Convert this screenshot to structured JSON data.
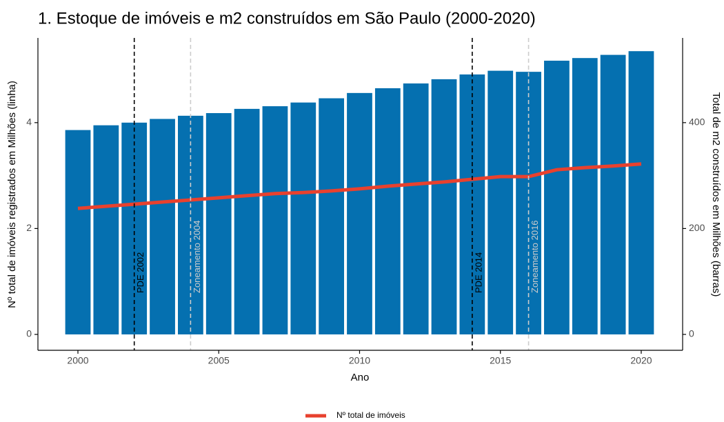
{
  "chart_data": {
    "type": "bar",
    "title": "1. Estoque de imóveis e m2 construídos em São Paulo (2000-2020)",
    "x_label": "Ano",
    "y_label": "Nº total de imóveis registrados em Milhões (linha)",
    "y2_label": "Total de m2 construídos em Milhões (barras)",
    "x": [
      2000,
      2001,
      2002,
      2003,
      2004,
      2005,
      2006,
      2007,
      2008,
      2009,
      2010,
      2011,
      2012,
      2013,
      2014,
      2015,
      2016,
      2017,
      2018,
      2019,
      2020
    ],
    "series": [
      {
        "type": "bar",
        "axis": "y2",
        "color": "#0570b0",
        "values": [
          386,
          395,
          400,
          407,
          413,
          418,
          426,
          431,
          438,
          446,
          456,
          465,
          474,
          482,
          491,
          498,
          496,
          517,
          522,
          528,
          535
        ]
      },
      {
        "type": "line",
        "name": "Nº total de imóveis",
        "color": "#e8412e",
        "values": [
          2.38,
          2.42,
          2.46,
          2.5,
          2.54,
          2.58,
          2.62,
          2.66,
          2.68,
          2.71,
          2.75,
          2.8,
          2.84,
          2.88,
          2.93,
          2.98,
          2.98,
          3.11,
          3.15,
          3.18,
          3.22
        ]
      }
    ],
    "xlim": [
      1998.58,
      2021.47
    ],
    "xticks": [
      2000,
      2005,
      2010,
      2015,
      2020
    ],
    "ylim": [
      -0.3,
      5.6
    ],
    "yticks": [
      0,
      2,
      4
    ],
    "y2lim": [
      -30,
      560
    ],
    "y2ticks": [
      0,
      200,
      400
    ],
    "annotations": [
      {
        "x": 2002,
        "label": "PDE 2002",
        "color": "#000000"
      },
      {
        "x": 2004,
        "label": "Zoneamento 2004",
        "color": "#cccccc"
      },
      {
        "x": 2014,
        "label": "PDE 2014",
        "color": "#000000"
      },
      {
        "x": 2016,
        "label": "Zoneamento 2016",
        "color": "#cccccc"
      }
    ],
    "grid": false,
    "legend": "bottom"
  }
}
